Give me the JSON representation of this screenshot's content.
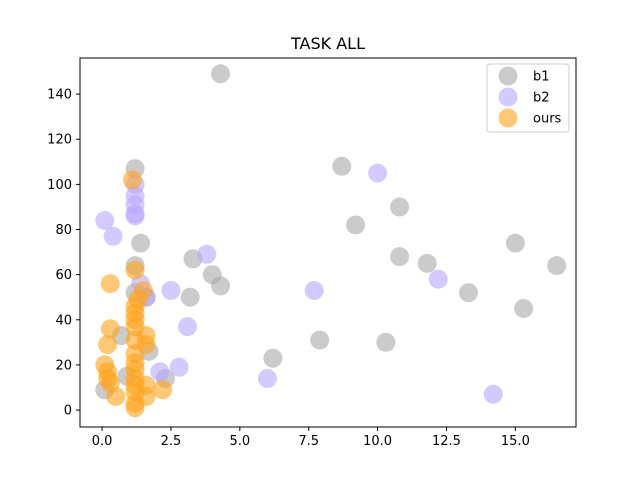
{
  "chart_data": {
    "type": "scatter",
    "title": "TASK ALL",
    "xlabel": "",
    "ylabel": "",
    "xlim": [
      -0.8,
      17.2
    ],
    "ylim": [
      -7.5,
      156
    ],
    "xticks": [
      0.0,
      2.5,
      5.0,
      7.5,
      10.0,
      12.5,
      15.0
    ],
    "xtick_labels": [
      "0.0",
      "2.5",
      "5.0",
      "7.5",
      "10.0",
      "12.5",
      "15.0"
    ],
    "yticks": [
      0,
      20,
      40,
      60,
      80,
      100,
      120,
      140
    ],
    "ytick_labels": [
      "0",
      "20",
      "40",
      "60",
      "80",
      "100",
      "120",
      "140"
    ],
    "grid": false,
    "legend_position": "top-right",
    "series": [
      {
        "name": "b1",
        "color": "#a9a9a9",
        "points": [
          [
            4.3,
            149
          ],
          [
            8.7,
            108
          ],
          [
            1.2,
            107
          ],
          [
            10.8,
            90
          ],
          [
            9.2,
            82
          ],
          [
            15.0,
            74
          ],
          [
            1.4,
            74
          ],
          [
            3.3,
            67
          ],
          [
            10.8,
            68
          ],
          [
            11.8,
            65
          ],
          [
            16.5,
            64
          ],
          [
            1.2,
            64
          ],
          [
            4.0,
            60
          ],
          [
            4.3,
            55
          ],
          [
            13.3,
            52
          ],
          [
            3.2,
            50
          ],
          [
            15.3,
            45
          ],
          [
            0.7,
            33
          ],
          [
            7.9,
            31
          ],
          [
            10.3,
            30
          ],
          [
            1.7,
            26
          ],
          [
            6.2,
            23
          ],
          [
            2.3,
            14
          ],
          [
            0.9,
            15
          ],
          [
            0.1,
            9
          ],
          [
            1.2,
            52
          ],
          [
            1.6,
            50
          ]
        ]
      },
      {
        "name": "b2",
        "color": "#b9a6ff",
        "points": [
          [
            0.1,
            84
          ],
          [
            0.4,
            77
          ],
          [
            1.2,
            100
          ],
          [
            1.2,
            95
          ],
          [
            1.2,
            91
          ],
          [
            1.2,
            87
          ],
          [
            1.2,
            86
          ],
          [
            3.8,
            69
          ],
          [
            10.0,
            105
          ],
          [
            12.2,
            58
          ],
          [
            7.7,
            53
          ],
          [
            2.5,
            53
          ],
          [
            1.4,
            56
          ],
          [
            3.1,
            37
          ],
          [
            2.8,
            19
          ],
          [
            2.1,
            17
          ],
          [
            6.0,
            14
          ],
          [
            14.2,
            7
          ],
          [
            1.6,
            50
          ]
        ]
      },
      {
        "name": "ours",
        "color": "#ffa41c",
        "points": [
          [
            1.1,
            102
          ],
          [
            1.2,
            62
          ],
          [
            0.3,
            56
          ],
          [
            1.5,
            53
          ],
          [
            1.3,
            49
          ],
          [
            1.2,
            46
          ],
          [
            1.2,
            43
          ],
          [
            1.2,
            40
          ],
          [
            1.2,
            37
          ],
          [
            0.3,
            36
          ],
          [
            1.6,
            33
          ],
          [
            1.2,
            31
          ],
          [
            0.2,
            29
          ],
          [
            1.6,
            29
          ],
          [
            1.2,
            25
          ],
          [
            1.2,
            21
          ],
          [
            0.1,
            20
          ],
          [
            0.2,
            17
          ],
          [
            1.2,
            18
          ],
          [
            0.2,
            14
          ],
          [
            1.2,
            14
          ],
          [
            1.2,
            11
          ],
          [
            0.3,
            12
          ],
          [
            1.6,
            11
          ],
          [
            1.2,
            8
          ],
          [
            2.2,
            9
          ],
          [
            0.5,
            6
          ],
          [
            1.6,
            6
          ],
          [
            1.2,
            3
          ],
          [
            1.2,
            1
          ]
        ]
      }
    ]
  }
}
